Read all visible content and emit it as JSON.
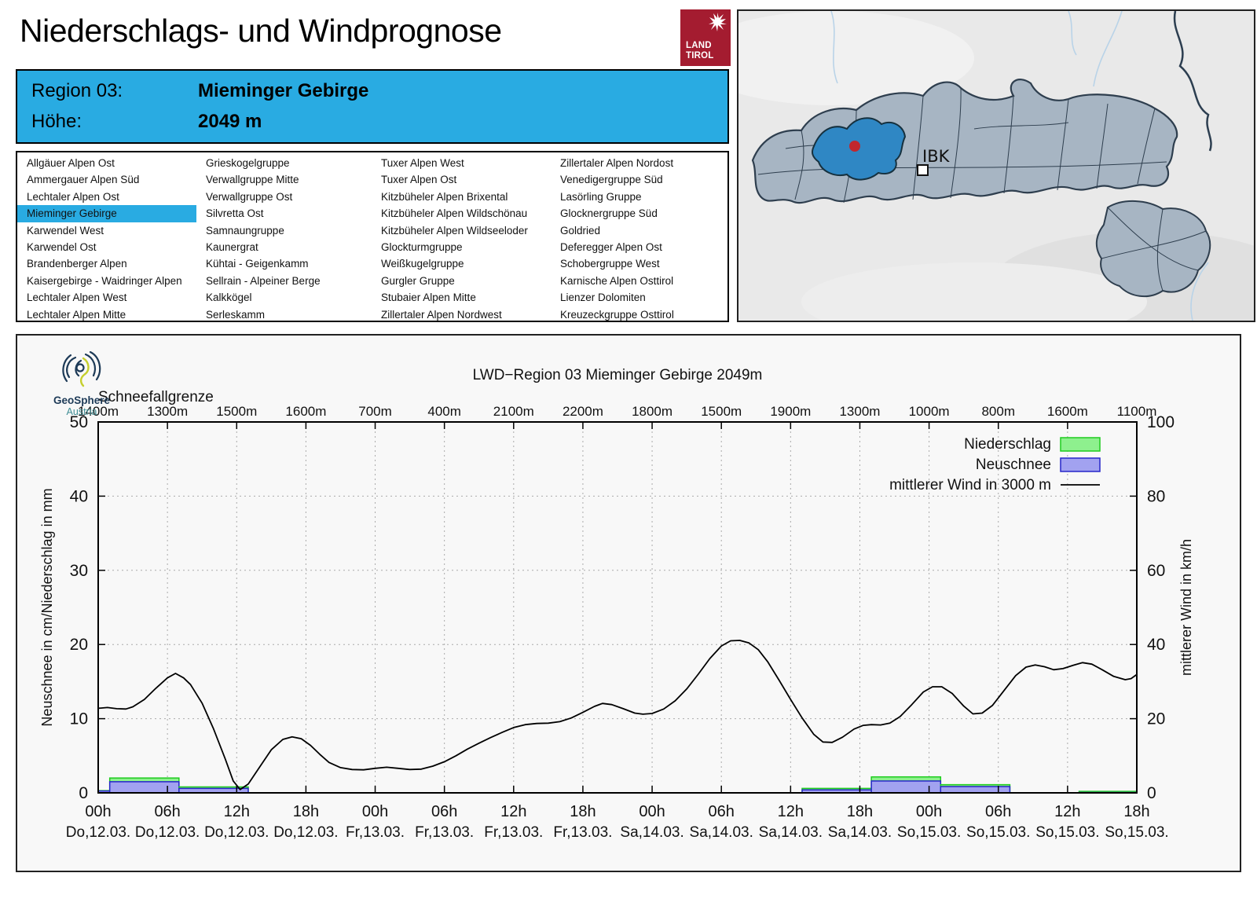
{
  "header": {
    "title": "Niederschlags- und Windprognose",
    "logo_lines": [
      "LAND",
      "TIROL"
    ],
    "region_label": "Region 03:",
    "region_value": "Mieminger Gebirge",
    "altitude_label": "Höhe:",
    "altitude_value": "2049 m",
    "accent_blue": "#29abe2",
    "logo_red": "#a41c30"
  },
  "regions": {
    "selected": "Mieminger Gebirge",
    "columns": [
      [
        "Allgäuer Alpen Ost",
        "Ammergauer Alpen Süd",
        "Lechtaler Alpen Ost",
        "Mieminger Gebirge",
        "Karwendel West",
        "Karwendel Ost",
        "Brandenberger Alpen",
        "Kaisergebirge - Waidringer Alpen",
        "Lechtaler Alpen West",
        "Lechtaler Alpen Mitte"
      ],
      [
        "Grieskogelgruppe",
        "Verwallgruppe Mitte",
        "Verwallgruppe Ost",
        "Silvretta Ost",
        "Samnaungruppe",
        "Kaunergrat",
        "Kühtai - Geigenkamm",
        "Sellrain - Alpeiner Berge",
        "Kalkkögel",
        "Serleskamm"
      ],
      [
        "Tuxer Alpen West",
        "Tuxer Alpen Ost",
        "Kitzbüheler Alpen Brixental",
        "Kitzbüheler Alpen Wildschönau",
        "Kitzbüheler Alpen Wildseeloder",
        "Glockturmgruppe",
        "Weißkugelgruppe",
        "Gurgler Gruppe",
        "Stubaier Alpen Mitte",
        "Zillertaler Alpen Nordwest"
      ],
      [
        "Zillertaler Alpen Nordost",
        "Venedigergruppe Süd",
        "Lasörling Gruppe",
        "Glocknergruppe Süd",
        "Goldried",
        "Deferegger Alpen Ost",
        "Schobergruppe West",
        "Karnische Alpen Osttirol",
        "Lienzer Dolomiten",
        "Kreuzeckgruppe Osttirol"
      ]
    ]
  },
  "map": {
    "marker_label": "IBK",
    "region_fill": "#a7b5c3",
    "highlight_fill": "#2f87c4",
    "marker_red": "#c1272d"
  },
  "geosphere": {
    "name": "GeoSphere",
    "sub": "Austria"
  },
  "chart_data": {
    "type": "bar+line",
    "title": "LWD−Region 03 Mieminger Gebirge 2049m",
    "top_axis_label": "Schneefallgrenze",
    "top_axis_values": [
      "1400m",
      "1300m",
      "1500m",
      "1600m",
      "700m",
      "400m",
      "2100m",
      "2200m",
      "1800m",
      "1500m",
      "1900m",
      "1300m",
      "1000m",
      "800m",
      "1600m",
      "1100m"
    ],
    "x_ticks_time": [
      "00h",
      "06h",
      "12h",
      "18h",
      "00h",
      "06h",
      "12h",
      "18h",
      "00h",
      "06h",
      "12h",
      "18h",
      "00h",
      "06h",
      "12h",
      "18h"
    ],
    "x_ticks_date": [
      "Do,12.03.",
      "Do,12.03.",
      "Do,12.03.",
      "Do,12.03.",
      "Fr,13.03.",
      "Fr,13.03.",
      "Fr,13.03.",
      "Fr,13.03.",
      "Sa,14.03.",
      "Sa,14.03.",
      "Sa,14.03.",
      "Sa,14.03.",
      "So,15.03.",
      "So,15.03.",
      "So,15.03.",
      "So,15.03."
    ],
    "x_hours_range": [
      0,
      90
    ],
    "ylabel_left": "Neuschnee in cm/Niederschlag in mm",
    "ylabel_right": "mittlerer Wind in km/h",
    "ylim_left": [
      0,
      50
    ],
    "ylim_right": [
      0,
      100
    ],
    "yticks_left": [
      0,
      10,
      20,
      30,
      40,
      50
    ],
    "yticks_right": [
      0,
      20,
      40,
      60,
      80,
      100
    ],
    "grid": true,
    "legend_position": "top-right",
    "legend": [
      {
        "label": "Niederschlag",
        "type": "box",
        "fill": "#8ef08e",
        "stroke": "#1ecc1e"
      },
      {
        "label": "Neuschnee",
        "type": "box",
        "fill": "#a2a2f0",
        "stroke": "#2626c9"
      },
      {
        "label": "mittlerer Wind in 3000 m",
        "type": "line",
        "stroke": "#000000"
      }
    ],
    "bars": [
      {
        "t0": 0,
        "t1": 1,
        "niederschlag_mm": 0.3,
        "neuschnee_cm": 0.25
      },
      {
        "t0": 1,
        "t1": 7,
        "niederschlag_mm": 2.0,
        "neuschnee_cm": 1.5
      },
      {
        "t0": 7,
        "t1": 13,
        "niederschlag_mm": 0.8,
        "neuschnee_cm": 0.6
      },
      {
        "t0": 61,
        "t1": 67,
        "niederschlag_mm": 0.6,
        "neuschnee_cm": 0.4
      },
      {
        "t0": 67,
        "t1": 73,
        "niederschlag_mm": 2.15,
        "neuschnee_cm": 1.6
      },
      {
        "t0": 73,
        "t1": 79,
        "niederschlag_mm": 1.1,
        "neuschnee_cm": 0.85
      },
      {
        "t0": 85,
        "t1": 90,
        "niederschlag_mm": 0.2,
        "neuschnee_cm": 0.05
      }
    ],
    "wind_series": {
      "name": "mittlerer Wind in 3000 m",
      "unit": "km/h",
      "points": [
        [
          0,
          22.8
        ],
        [
          0.8,
          23.0
        ],
        [
          1.6,
          22.7
        ],
        [
          2.4,
          22.6
        ],
        [
          3,
          23.2
        ],
        [
          4,
          25.2
        ],
        [
          5,
          28.2
        ],
        [
          6,
          31.0
        ],
        [
          6.7,
          32.2
        ],
        [
          7.4,
          31.0
        ],
        [
          8,
          29.2
        ],
        [
          9,
          24.2
        ],
        [
          10,
          17.2
        ],
        [
          11,
          9.2
        ],
        [
          11.7,
          3.2
        ],
        [
          12.3,
          0.9
        ],
        [
          13,
          2.4
        ],
        [
          14,
          7.0
        ],
        [
          15,
          11.6
        ],
        [
          16,
          14.4
        ],
        [
          16.8,
          15.1
        ],
        [
          17.6,
          14.6
        ],
        [
          18.4,
          12.8
        ],
        [
          19.2,
          10.4
        ],
        [
          20,
          8.2
        ],
        [
          21,
          6.8
        ],
        [
          22,
          6.3
        ],
        [
          23,
          6.2
        ],
        [
          24,
          6.6
        ],
        [
          25,
          6.9
        ],
        [
          26,
          6.6
        ],
        [
          27,
          6.3
        ],
        [
          28,
          6.4
        ],
        [
          29,
          7.2
        ],
        [
          30,
          8.4
        ],
        [
          31,
          10.0
        ],
        [
          32,
          11.8
        ],
        [
          33,
          13.4
        ],
        [
          34,
          14.9
        ],
        [
          35,
          16.3
        ],
        [
          36,
          17.6
        ],
        [
          37,
          18.4
        ],
        [
          38,
          18.7
        ],
        [
          39,
          18.8
        ],
        [
          40,
          19.2
        ],
        [
          41,
          20.2
        ],
        [
          42,
          21.7
        ],
        [
          43,
          23.3
        ],
        [
          43.7,
          24.1
        ],
        [
          44.5,
          23.8
        ],
        [
          45.5,
          22.7
        ],
        [
          46.5,
          21.5
        ],
        [
          47.2,
          21.2
        ],
        [
          48,
          21.4
        ],
        [
          49,
          22.6
        ],
        [
          50,
          24.8
        ],
        [
          51,
          28.0
        ],
        [
          52,
          32.0
        ],
        [
          53,
          36.2
        ],
        [
          54,
          39.6
        ],
        [
          54.8,
          41.0
        ],
        [
          55.6,
          41.1
        ],
        [
          56.4,
          40.4
        ],
        [
          57.2,
          38.6
        ],
        [
          58,
          35.4
        ],
        [
          59,
          30.4
        ],
        [
          60,
          25.2
        ],
        [
          61,
          20.2
        ],
        [
          62,
          15.8
        ],
        [
          62.8,
          13.7
        ],
        [
          63.6,
          13.6
        ],
        [
          64.5,
          15.0
        ],
        [
          65.5,
          17.2
        ],
        [
          66.3,
          18.2
        ],
        [
          67,
          18.4
        ],
        [
          67.8,
          18.3
        ],
        [
          68.6,
          18.8
        ],
        [
          69.5,
          20.6
        ],
        [
          70.5,
          23.8
        ],
        [
          71.5,
          27.2
        ],
        [
          72.3,
          28.6
        ],
        [
          73.1,
          28.6
        ],
        [
          74,
          26.8
        ],
        [
          75,
          23.4
        ],
        [
          75.8,
          21.3
        ],
        [
          76.6,
          21.5
        ],
        [
          77.5,
          23.6
        ],
        [
          78.5,
          27.6
        ],
        [
          79.5,
          31.6
        ],
        [
          80.4,
          33.9
        ],
        [
          81.2,
          34.5
        ],
        [
          82,
          34.0
        ],
        [
          82.8,
          33.2
        ],
        [
          83.6,
          33.5
        ],
        [
          84.5,
          34.4
        ],
        [
          85.3,
          35.1
        ],
        [
          86.1,
          34.7
        ],
        [
          87,
          33.2
        ],
        [
          88,
          31.4
        ],
        [
          89,
          30.5
        ],
        [
          89.5,
          30.8
        ],
        [
          90,
          31.9
        ]
      ]
    }
  }
}
